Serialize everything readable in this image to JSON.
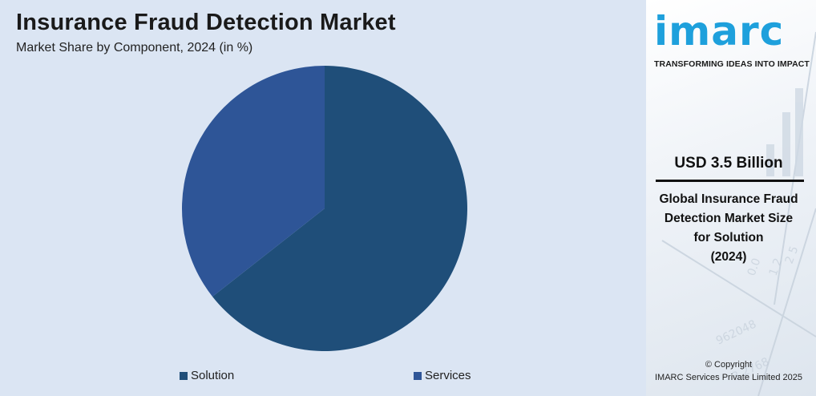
{
  "title": "Insurance Fraud Detection Market",
  "subtitle": "Market Share by Component, 2024 (in %)",
  "chart_data": {
    "type": "pie",
    "title": "Insurance Fraud Detection Market",
    "subtitle": "Market Share by Component, 2024 (in %)",
    "slices": [
      {
        "name": "Solution",
        "value": 64.4,
        "color": "#1f4e79"
      },
      {
        "name": "Services",
        "value": 35.6,
        "color": "#2e5597"
      }
    ],
    "legend_position": "bottom"
  },
  "brand": {
    "logo": "imarc",
    "tagline": "TRANSFORMING IDEAS INTO IMPACT",
    "accent_color": "#1ea0dc"
  },
  "stat": {
    "value": "USD 3.5 Billion",
    "line1": "Global Insurance Fraud",
    "line2": "Detection Market Size",
    "line3": "for Solution",
    "line4": "(2024)"
  },
  "footer": {
    "copyright": "© Copyright",
    "company": "IMARC Services Private Limited 2025"
  }
}
